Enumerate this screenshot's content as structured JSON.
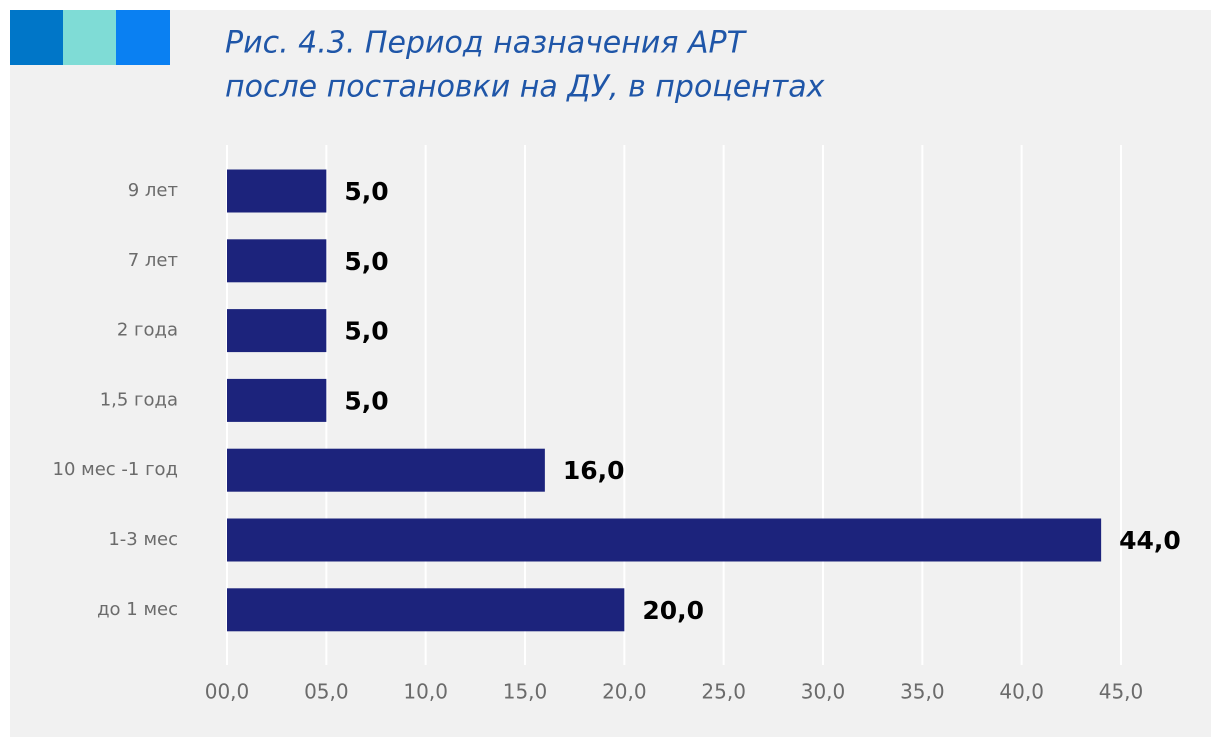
{
  "chart_data": {
    "type": "bar",
    "orientation": "horizontal",
    "title": [
      "Рис. 4.3. Период назначения АРТ",
      "после постановки на ДУ, в процентах"
    ],
    "categories": [
      "9 лет",
      "7 лет",
      "2 года",
      "1,5 года",
      "10 мес -1 год",
      "1-3 мес",
      "до 1 мес"
    ],
    "values": [
      5,
      5,
      5,
      5,
      16,
      44,
      20
    ],
    "value_labels": [
      "5,0",
      "5,0",
      "5,0",
      "5,0",
      "16,0",
      "44,0",
      "20,0"
    ],
    "color": "#1c237c",
    "xlim": [
      0,
      45
    ],
    "xticks": [
      {
        "value": 0,
        "label": "00,0"
      },
      {
        "value": 5,
        "label": "05,0"
      },
      {
        "value": 10,
        "label": "10,0"
      },
      {
        "value": 15,
        "label": "15,0"
      },
      {
        "value": 20,
        "label": "20,0"
      },
      {
        "value": 25,
        "label": "25,0"
      },
      {
        "value": 30,
        "label": "30,0"
      },
      {
        "value": 35,
        "label": "35,0"
      },
      {
        "value": 40,
        "label": "40,0"
      },
      {
        "value": 45,
        "label": "45,0"
      }
    ],
    "grid": true
  }
}
